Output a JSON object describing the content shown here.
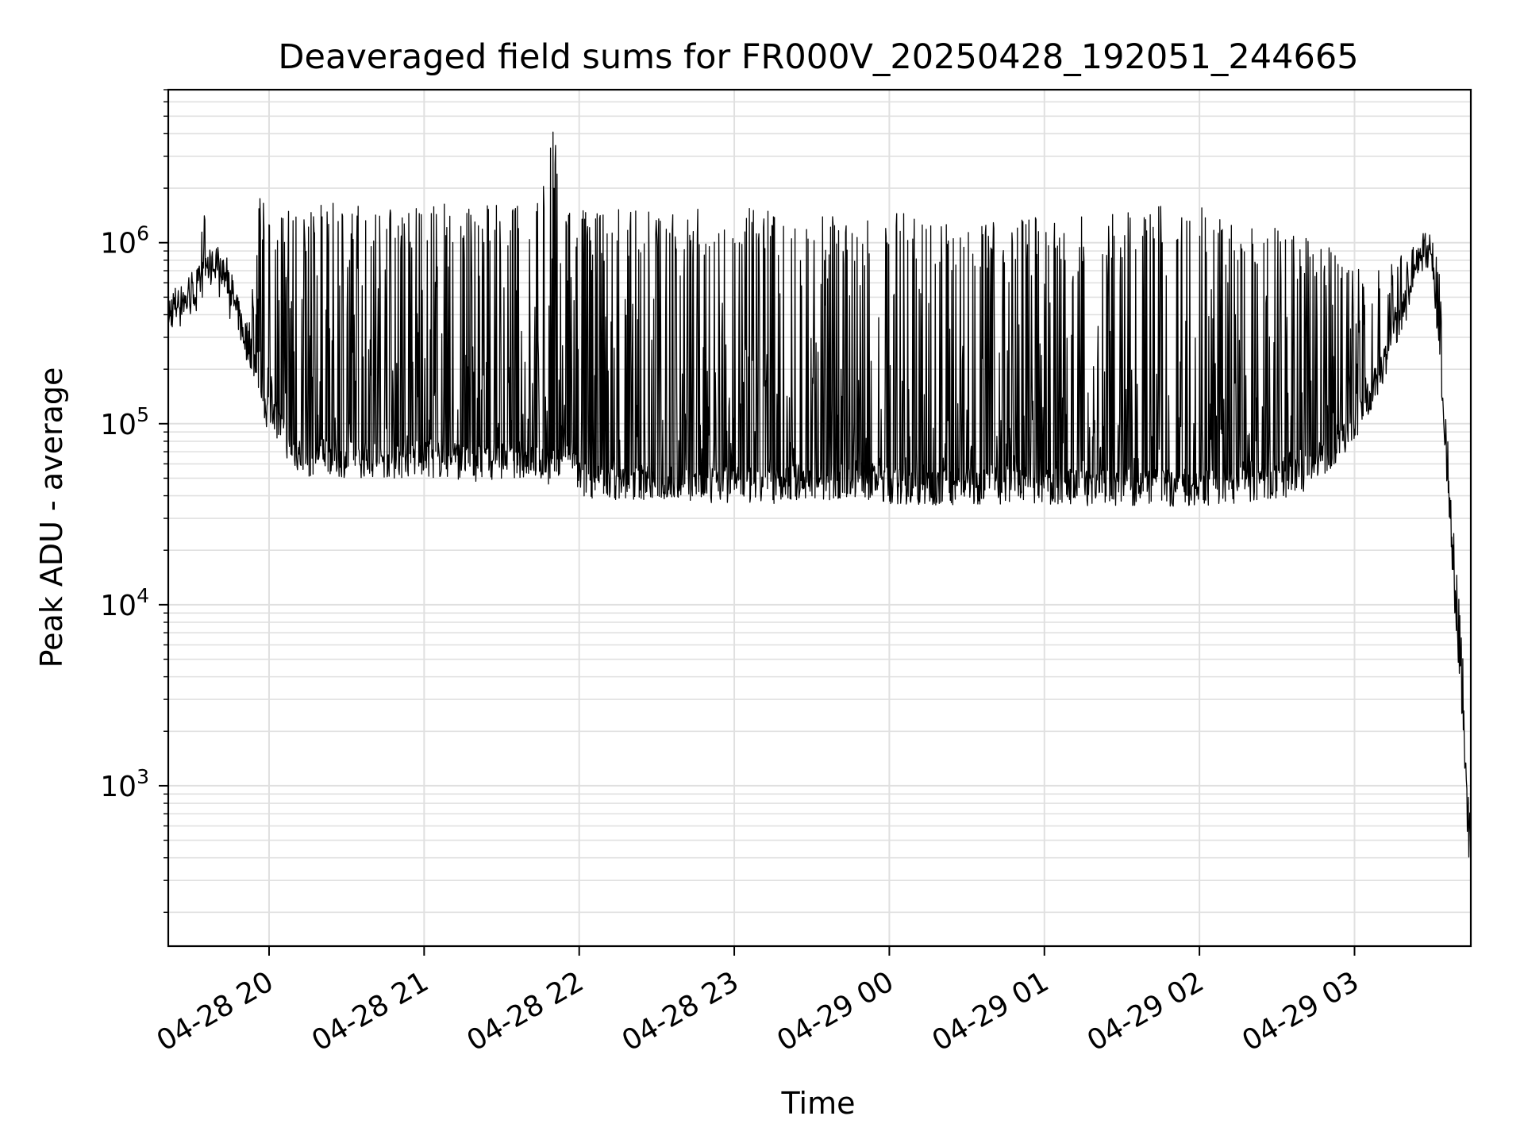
{
  "chart_data": {
    "type": "line",
    "title": "Deaveraged field sums for FR000V_20250428_192051_244665",
    "xlabel": "Time",
    "ylabel": "Peak ADU - average",
    "yscale": "log",
    "ylim": [
      130,
      7000000
    ],
    "xlim": [
      "2025-04-28 19:21",
      "2025-04-29 03:45"
    ],
    "grid": true,
    "line_color": "#000000",
    "grid_color": "#e0e0e0",
    "x_ticks": [
      {
        "value": "2025-04-28 20:00",
        "label": "04-28 20"
      },
      {
        "value": "2025-04-28 21:00",
        "label": "04-28 21"
      },
      {
        "value": "2025-04-28 22:00",
        "label": "04-28 22"
      },
      {
        "value": "2025-04-28 23:00",
        "label": "04-28 23"
      },
      {
        "value": "2025-04-29 00:00",
        "label": "04-29 00"
      },
      {
        "value": "2025-04-29 01:00",
        "label": "04-29 01"
      },
      {
        "value": "2025-04-29 02:00",
        "label": "04-29 02"
      },
      {
        "value": "2025-04-29 03:00",
        "label": "04-29 03"
      }
    ],
    "y_ticks": [
      {
        "value": 1000,
        "base": "10",
        "exp": "3"
      },
      {
        "value": 10000,
        "base": "10",
        "exp": "4"
      },
      {
        "value": 100000,
        "base": "10",
        "exp": "5"
      },
      {
        "value": 1000000,
        "base": "10",
        "exp": "6"
      }
    ],
    "series": [
      {
        "x": [
          "2025-04-28 19:21",
          "2025-04-28 19:25",
          "2025-04-28 19:29",
          "2025-04-28 19:33",
          "2025-04-28 19:34",
          "2025-04-28 19:36",
          "2025-04-28 19:40",
          "2025-04-28 19:44",
          "2025-04-28 19:48",
          "2025-04-28 19:52",
          "2025-04-28 19:56",
          "2025-04-28 20:00",
          "2025-04-28 20:01",
          "2025-04-28 20:05",
          "2025-04-28 20:10",
          "2025-04-28 20:15",
          "2025-04-28 20:20",
          "2025-04-28 20:25",
          "2025-04-28 20:30",
          "2025-04-28 20:40",
          "2025-04-28 20:50",
          "2025-04-28 21:00",
          "2025-04-28 21:10",
          "2025-04-28 21:20",
          "2025-04-28 21:30",
          "2025-04-28 21:40",
          "2025-04-28 21:45",
          "2025-04-28 21:50",
          "2025-04-28 21:55",
          "2025-04-28 22:00",
          "2025-04-28 22:02",
          "2025-04-28 22:10",
          "2025-04-28 22:20",
          "2025-04-28 22:30",
          "2025-04-28 22:45",
          "2025-04-28 23:00",
          "2025-04-28 23:15",
          "2025-04-28 23:30",
          "2025-04-28 23:40",
          "2025-04-28 23:45",
          "2025-04-29 00:00",
          "2025-04-29 00:15",
          "2025-04-29 00:30",
          "2025-04-29 00:45",
          "2025-04-29 01:00",
          "2025-04-29 01:15",
          "2025-04-29 01:30",
          "2025-04-29 01:45",
          "2025-04-29 02:00",
          "2025-04-29 02:15",
          "2025-04-29 02:30",
          "2025-04-29 02:40",
          "2025-04-29 02:50",
          "2025-04-29 03:00",
          "2025-04-29 03:10",
          "2025-04-29 03:15",
          "2025-04-29 03:20",
          "2025-04-29 03:23",
          "2025-04-29 03:26",
          "2025-04-29 03:30",
          "2025-04-29 03:33",
          "2025-04-29 03:36",
          "2025-04-29 03:39",
          "2025-04-29 03:42",
          "2025-04-29 03:44",
          "2025-04-29 03:45"
        ],
        "low": [
          320000,
          380000,
          430000,
          470000,
          480000,
          600000,
          650000,
          520000,
          320000,
          220000,
          150000,
          80000,
          100000,
          70000,
          55000,
          50000,
          55000,
          52000,
          50000,
          50000,
          50000,
          50000,
          50000,
          48000,
          50000,
          50000,
          48000,
          45000,
          60000,
          40000,
          38000,
          38000,
          38000,
          38000,
          37000,
          36000,
          36000,
          38000,
          38000,
          40000,
          36000,
          35000,
          36000,
          36000,
          36000,
          35000,
          35000,
          35000,
          35000,
          36000,
          38000,
          42000,
          55000,
          80000,
          150000,
          250000,
          350000,
          600000,
          750000,
          700000,
          200000,
          40000,
          8000,
          2000,
          400,
          250
        ],
        "high": [
          550000,
          600000,
          620000,
          650000,
          2400000,
          900000,
          950000,
          700000,
          500000,
          350000,
          2000000,
          1500000,
          1600000,
          1600000,
          1650000,
          1650000,
          1650000,
          1650000,
          1650000,
          1650000,
          1650000,
          1650000,
          1650000,
          1650000,
          1600000,
          1600000,
          1700000,
          4500000,
          1600000,
          1600000,
          1550000,
          1550000,
          1550000,
          1550000,
          1550000,
          1550000,
          1550000,
          1500000,
          1400000,
          1200000,
          1500000,
          1400000,
          1300000,
          1300000,
          1400000,
          1400000,
          1500000,
          1600000,
          1600000,
          1200000,
          1200000,
          1100000,
          1000000,
          800000,
          700000,
          800000,
          900000,
          1000000,
          1000000,
          1300000,
          700000,
          100000,
          25000,
          5000,
          1000,
          700
        ]
      }
    ]
  }
}
